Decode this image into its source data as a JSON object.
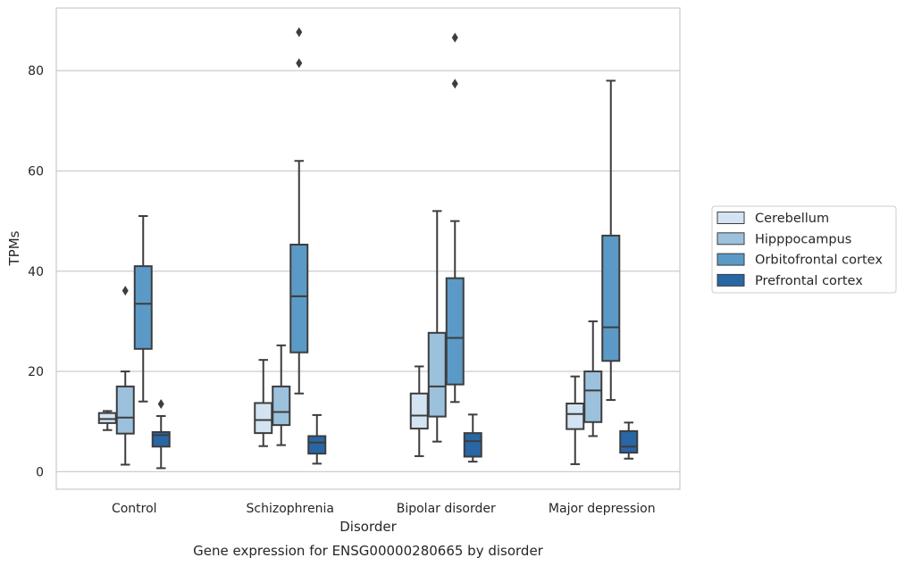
{
  "caption": "Gene expression for ENSG00000280665 by disorder",
  "chart_data": {
    "type": "box",
    "xlabel": "Disorder",
    "ylabel": "TPMs",
    "ylim": [
      -3.5,
      92.5
    ],
    "yticks": [
      0,
      20,
      40,
      60,
      80
    ],
    "grid": "horizontal",
    "legend_position": "right",
    "categories": [
      "Control",
      "Schizophrenia",
      "Bipolar disorder",
      "Major depression"
    ],
    "series": [
      {
        "name": "Cerebellum",
        "color": "#d4e3f2",
        "boxes": [
          {
            "q1": 9.7,
            "median": 10.5,
            "q3": 11.7,
            "whisker_low": 8.3,
            "whisker_high": 12.1,
            "outliers": []
          },
          {
            "q1": 7.7,
            "median": 10.3,
            "q3": 13.7,
            "whisker_low": 5.1,
            "whisker_high": 22.3,
            "outliers": []
          },
          {
            "q1": 8.6,
            "median": 11.2,
            "q3": 15.6,
            "whisker_low": 3.1,
            "whisker_high": 21.0,
            "outliers": []
          },
          {
            "q1": 8.5,
            "median": 11.5,
            "q3": 13.6,
            "whisker_low": 1.5,
            "whisker_high": 19.0,
            "outliers": []
          }
        ]
      },
      {
        "name": "Hipppocampus",
        "color": "#9cc1dc",
        "boxes": [
          {
            "q1": 7.6,
            "median": 10.8,
            "q3": 17.0,
            "whisker_low": 1.4,
            "whisker_high": 20.0,
            "outliers": [
              36.1
            ]
          },
          {
            "q1": 9.3,
            "median": 11.9,
            "q3": 17.0,
            "whisker_low": 5.3,
            "whisker_high": 25.2,
            "outliers": []
          },
          {
            "q1": 11.0,
            "median": 17.0,
            "q3": 27.7,
            "whisker_low": 6.0,
            "whisker_high": 52.0,
            "outliers": []
          },
          {
            "q1": 9.9,
            "median": 16.2,
            "q3": 20.0,
            "whisker_low": 7.1,
            "whisker_high": 30.0,
            "outliers": []
          }
        ]
      },
      {
        "name": "Orbitofrontal cortex",
        "color": "#5b9ac7",
        "boxes": [
          {
            "q1": 24.5,
            "median": 33.5,
            "q3": 41.0,
            "whisker_low": 14.0,
            "whisker_high": 51.0,
            "outliers": []
          },
          {
            "q1": 23.8,
            "median": 35.0,
            "q3": 45.3,
            "whisker_low": 15.6,
            "whisker_high": 62.0,
            "outliers": [
              87.7,
              81.5
            ]
          },
          {
            "q1": 17.4,
            "median": 26.7,
            "q3": 38.6,
            "whisker_low": 13.9,
            "whisker_high": 50.0,
            "outliers": [
              86.6,
              77.4
            ]
          },
          {
            "q1": 22.1,
            "median": 28.8,
            "q3": 47.1,
            "whisker_low": 14.3,
            "whisker_high": 78.0,
            "outliers": []
          }
        ]
      },
      {
        "name": "Prefrontal cortex",
        "color": "#2866a5",
        "boxes": [
          {
            "q1": 5.0,
            "median": 7.3,
            "q3": 7.9,
            "whisker_low": 0.7,
            "whisker_high": 11.1,
            "outliers": [
              13.5
            ]
          },
          {
            "q1": 3.6,
            "median": 5.8,
            "q3": 7.1,
            "whisker_low": 1.6,
            "whisker_high": 11.3,
            "outliers": []
          },
          {
            "q1": 3.0,
            "median": 6.1,
            "q3": 7.7,
            "whisker_low": 2.0,
            "whisker_high": 11.4,
            "outliers": []
          },
          {
            "q1": 3.8,
            "median": 5.0,
            "q3": 8.1,
            "whisker_low": 2.6,
            "whisker_high": 9.8,
            "outliers": []
          }
        ]
      }
    ]
  }
}
